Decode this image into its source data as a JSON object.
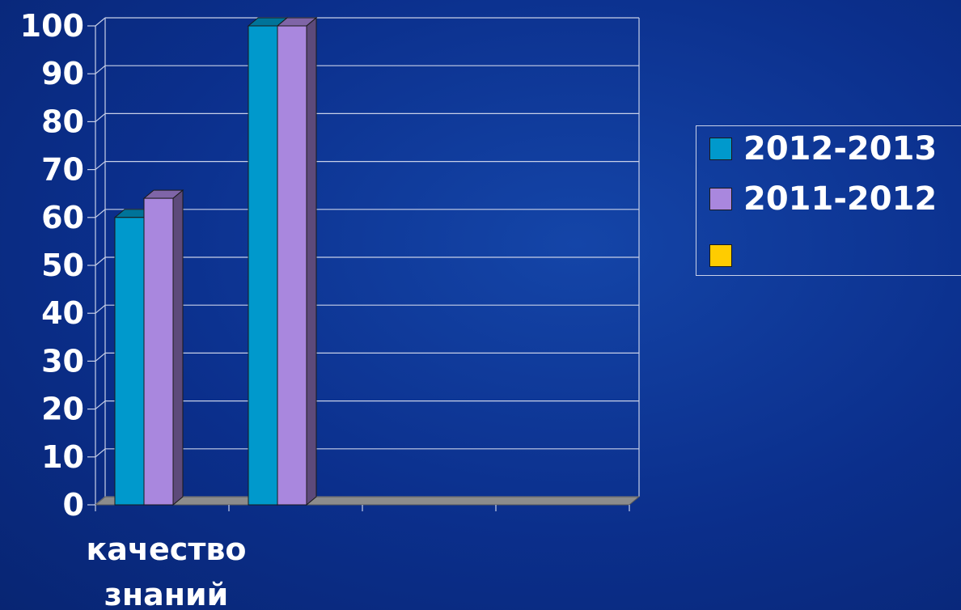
{
  "chart_data": {
    "type": "bar",
    "categories": [
      "качество знаний",
      "",
      "",
      ""
    ],
    "series": [
      {
        "name": "2012-2013",
        "values": [
          60,
          100,
          null,
          null
        ],
        "color": "#0099cc"
      },
      {
        "name": "2011-2012",
        "values": [
          64,
          100,
          null,
          null
        ],
        "color": "#a987de"
      },
      {
        "name": "",
        "values": [
          null,
          null,
          null,
          null
        ],
        "color": "#ffcc00"
      }
    ],
    "ylim": [
      0,
      100
    ],
    "yticks": [
      "0",
      "10",
      "20",
      "30",
      "40",
      "50",
      "60",
      "70",
      "80",
      "90",
      "100"
    ],
    "grid": true,
    "legend_position": "right"
  }
}
